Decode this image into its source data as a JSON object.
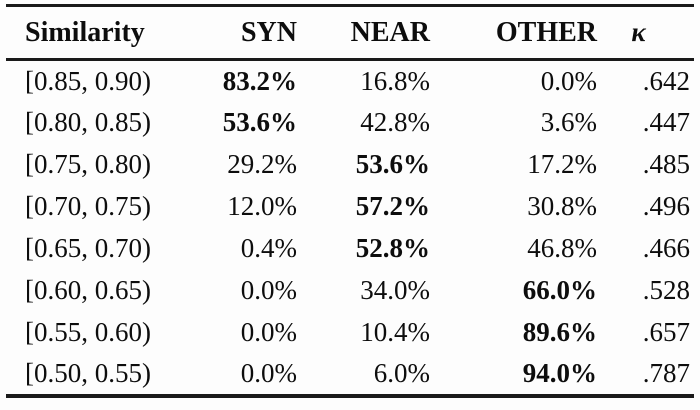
{
  "table": {
    "columns": [
      {
        "label": "Similarity"
      },
      {
        "label": "SYN"
      },
      {
        "label": "NEAR"
      },
      {
        "label": "OTHER"
      },
      {
        "label": "κ"
      }
    ],
    "rows": [
      {
        "range": "[0.85, 0.90)",
        "syn": "83.2%",
        "near": "16.8%",
        "other": "0.0%",
        "kappa": ".642",
        "bold": "syn"
      },
      {
        "range": "[0.80, 0.85)",
        "syn": "53.6%",
        "near": "42.8%",
        "other": "3.6%",
        "kappa": ".447",
        "bold": "syn"
      },
      {
        "range": "[0.75, 0.80)",
        "syn": "29.2%",
        "near": "53.6%",
        "other": "17.2%",
        "kappa": ".485",
        "bold": "near"
      },
      {
        "range": "[0.70, 0.75)",
        "syn": "12.0%",
        "near": "57.2%",
        "other": "30.8%",
        "kappa": ".496",
        "bold": "near"
      },
      {
        "range": "[0.65, 0.70)",
        "syn": "0.4%",
        "near": "52.8%",
        "other": "46.8%",
        "kappa": ".466",
        "bold": "near"
      },
      {
        "range": "[0.60, 0.65)",
        "syn": "0.0%",
        "near": "34.0%",
        "other": "66.0%",
        "kappa": ".528",
        "bold": "other"
      },
      {
        "range": "[0.55, 0.60)",
        "syn": "0.0%",
        "near": "10.4%",
        "other": "89.6%",
        "kappa": ".657",
        "bold": "other"
      },
      {
        "range": "[0.50, 0.55)",
        "syn": "0.0%",
        "near": "6.0%",
        "other": "94.0%",
        "kappa": ".787",
        "bold": "other"
      }
    ]
  },
  "colors": {
    "text": "#0d0d0d",
    "rule": "#1a1a1a",
    "background": "#fdfdfd"
  }
}
